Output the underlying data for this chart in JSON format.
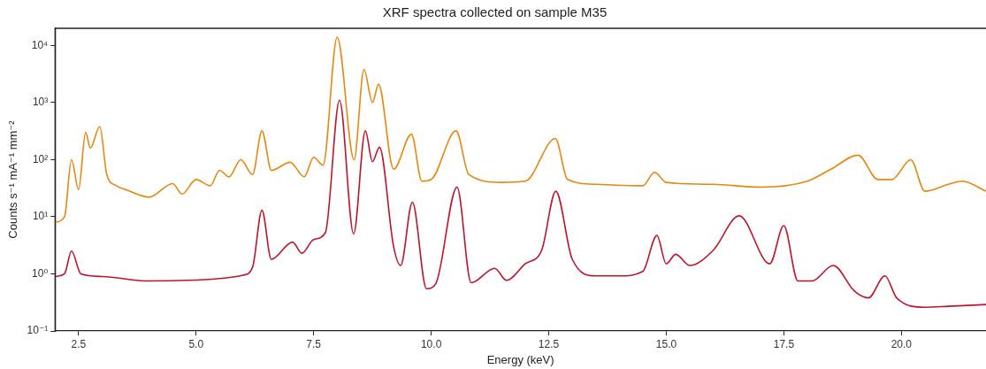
{
  "chart_data": {
    "type": "line",
    "title": "XRF spectra collected on sample M35",
    "xlabel": "Energy (keV)",
    "ylabel": "Counts s⁻¹ mA⁻¹ mm⁻²",
    "log": "y",
    "grid": false,
    "legend": false,
    "marker": "none",
    "line_style": "solid",
    "xlim": [
      2.0,
      21.8
    ],
    "xticks": [
      2.5,
      {
        "value": 5,
        "label": "5.0"
      },
      7.5,
      {
        "value": 10,
        "label": "10.0"
      },
      12.5,
      {
        "value": 15,
        "label": "15.0"
      },
      17.5,
      {
        "value": 20,
        "label": "20.0"
      }
    ],
    "ylim": [
      0.1,
      20000
    ],
    "yticks": [
      {
        "value": 0.1,
        "label": "10⁻¹"
      },
      {
        "value": 1,
        "label": "10⁰"
      },
      {
        "value": 10,
        "label": "10¹"
      },
      {
        "value": 100,
        "label": "10²"
      },
      {
        "value": 1000,
        "label": "10³"
      },
      {
        "value": 10000,
        "label": "10⁴"
      }
    ],
    "series": [
      {
        "color": "#c0142a",
        "x": [
          2.0,
          2.2,
          2.35,
          2.55,
          3.0,
          4.0,
          5.0,
          6.0,
          6.2,
          6.4,
          6.6,
          7.05,
          7.25,
          7.5,
          7.75,
          8.05,
          8.35,
          8.6,
          8.75,
          8.9,
          9.2,
          9.35,
          9.6,
          9.9,
          10.1,
          10.55,
          10.85,
          11.35,
          11.6,
          12.0,
          12.35,
          12.65,
          13.0,
          13.5,
          14.0,
          14.5,
          14.8,
          15.0,
          15.2,
          15.5,
          16.0,
          16.55,
          17.2,
          17.5,
          17.8,
          18.1,
          18.55,
          19.0,
          19.3,
          19.65,
          19.9,
          20.5,
          21.0,
          21.8
        ],
        "values": [
          0.9,
          1.0,
          2.5,
          1.0,
          0.9,
          0.75,
          0.78,
          0.95,
          1.3,
          13,
          1.8,
          3.6,
          2.3,
          4,
          5.3,
          1100,
          5,
          320,
          92,
          165,
          3,
          1.4,
          18,
          0.55,
          0.68,
          33,
          0.7,
          1.25,
          0.77,
          1.5,
          2.6,
          28,
          1.8,
          0.92,
          0.92,
          1.1,
          4.7,
          1.5,
          2.2,
          1.4,
          2.6,
          10.4,
          1.5,
          7,
          0.75,
          0.75,
          1.4,
          0.5,
          0.38,
          0.92,
          0.38,
          0.26,
          0.27,
          0.29
        ]
      },
      {
        "color": "#e8870e",
        "x": [
          2.0,
          2.2,
          2.35,
          2.5,
          2.65,
          2.75,
          2.95,
          3.1,
          3.3,
          3.5,
          4.0,
          4.5,
          4.7,
          5.0,
          5.3,
          5.5,
          5.7,
          5.95,
          6.2,
          6.4,
          6.6,
          7.0,
          7.3,
          7.5,
          7.7,
          8.0,
          8.36,
          8.57,
          8.75,
          8.88,
          9.2,
          9.58,
          9.8,
          10.0,
          10.53,
          10.8,
          11.5,
          12.0,
          12.64,
          12.9,
          13.5,
          14.5,
          14.75,
          15.0,
          16.0,
          17.0,
          18.0,
          18.5,
          19.08,
          19.5,
          19.8,
          20.2,
          20.5,
          21.0,
          21.3,
          21.8
        ],
        "values": [
          8,
          10,
          100,
          30,
          300,
          160,
          380,
          55,
          35,
          30,
          22,
          38,
          25,
          45,
          35,
          65,
          50,
          100,
          55,
          320,
          65,
          90,
          50,
          110,
          80,
          14000,
          100,
          3800,
          1000,
          2100,
          68,
          280,
          42,
          45,
          320,
          55,
          40,
          42,
          235,
          45,
          37,
          35,
          60,
          40,
          37,
          33,
          42,
          68,
          120,
          45,
          45,
          100,
          28,
          37,
          42,
          28
        ]
      }
    ]
  }
}
